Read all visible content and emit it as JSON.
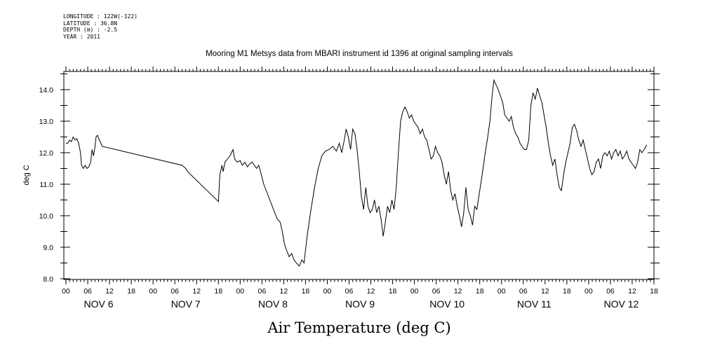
{
  "header": {
    "longitude": "LONGITUDE : 122W(-122)",
    "latitude": "LATITUDE : 36.8N",
    "depth": "DEPTH (m) : -2.5",
    "year": "YEAR : 2011"
  },
  "chart_data": {
    "type": "line",
    "title": "Mooring M1 Metsys data from MBARI instrument id 1396 at original sampling intervals",
    "xlabel": "Air Temperature (deg C)",
    "ylabel": "deg C",
    "ylim": [
      8.0,
      14.5
    ],
    "yticks": [
      "8.0",
      "9.0",
      "10.0",
      "11.0",
      "12.0",
      "13.0",
      "14.0"
    ],
    "xlim_hours": [
      0,
      162
    ],
    "hour_tick_labels": [
      "00",
      "06",
      "12",
      "18",
      "00",
      "06",
      "12",
      "18",
      "00",
      "06",
      "12",
      "18",
      "00",
      "06",
      "12",
      "18",
      "00",
      "06",
      "12",
      "18",
      "00",
      "06",
      "12",
      "18",
      "00",
      "06",
      "12",
      "18"
    ],
    "day_labels": [
      "NOV  6",
      "NOV  7",
      "NOV  8",
      "NOV  9",
      "NOV 10",
      "NOV 11",
      "NOV 12"
    ],
    "grid": false,
    "color": "#000000",
    "series": [
      {
        "points": [
          [
            0,
            12.3
          ],
          [
            0.5,
            12.3
          ],
          [
            1,
            12.4
          ],
          [
            1.5,
            12.35
          ],
          [
            2,
            12.5
          ],
          [
            2.5,
            12.4
          ],
          [
            3,
            12.45
          ],
          [
            3.5,
            12.3
          ],
          [
            4,
            12.0
          ],
          [
            4.3,
            11.6
          ],
          [
            4.8,
            11.5
          ],
          [
            5.3,
            11.6
          ],
          [
            5.8,
            11.5
          ],
          [
            6.3,
            11.55
          ],
          [
            6.8,
            11.7
          ],
          [
            7.2,
            12.1
          ],
          [
            7.6,
            11.9
          ],
          [
            8,
            12.2
          ],
          [
            8.3,
            12.5
          ],
          [
            8.7,
            12.55
          ],
          [
            9.2,
            12.4
          ],
          [
            9.6,
            12.3
          ],
          [
            10,
            12.2
          ],
          [
            32,
            11.6
          ],
          [
            32.5,
            11.55
          ],
          [
            33,
            11.5
          ],
          [
            33.5,
            11.4
          ],
          [
            42,
            10.45
          ],
          [
            42.4,
            11.3
          ],
          [
            43,
            11.6
          ],
          [
            43.3,
            11.4
          ],
          [
            43.8,
            11.7
          ],
          [
            44.5,
            11.8
          ],
          [
            45.2,
            11.9
          ],
          [
            46,
            12.1
          ],
          [
            46.5,
            11.8
          ],
          [
            47.2,
            11.7
          ],
          [
            48,
            11.75
          ],
          [
            48.6,
            11.6
          ],
          [
            49.3,
            11.7
          ],
          [
            50,
            11.55
          ],
          [
            50.7,
            11.65
          ],
          [
            51.3,
            11.7
          ],
          [
            51.9,
            11.6
          ],
          [
            52.5,
            11.5
          ],
          [
            53.1,
            11.6
          ],
          [
            53.6,
            11.4
          ],
          [
            54.5,
            11.0
          ],
          [
            55.5,
            10.7
          ],
          [
            56.5,
            10.4
          ],
          [
            57.5,
            10.1
          ],
          [
            58.2,
            9.9
          ],
          [
            59,
            9.8
          ],
          [
            59.6,
            9.5
          ],
          [
            60.2,
            9.1
          ],
          [
            60.8,
            8.9
          ],
          [
            61.5,
            8.7
          ],
          [
            62.2,
            8.8
          ],
          [
            62.8,
            8.6
          ],
          [
            63.5,
            8.5
          ],
          [
            64.3,
            8.4
          ],
          [
            65,
            8.6
          ],
          [
            65.6,
            8.5
          ],
          [
            66.5,
            9.4
          ],
          [
            67.5,
            10.2
          ],
          [
            68.5,
            10.9
          ],
          [
            69.5,
            11.5
          ],
          [
            70.5,
            11.9
          ],
          [
            71.5,
            12.05
          ],
          [
            72.5,
            12.1
          ],
          [
            73.5,
            12.2
          ],
          [
            74.5,
            12.05
          ],
          [
            75.3,
            12.3
          ],
          [
            76,
            12.0
          ],
          [
            76.6,
            12.35
          ],
          [
            77.2,
            12.75
          ],
          [
            77.8,
            12.5
          ],
          [
            78.4,
            12.1
          ],
          [
            79,
            12.75
          ],
          [
            79.6,
            12.6
          ],
          [
            80.2,
            12.1
          ],
          [
            80.8,
            11.4
          ],
          [
            81.4,
            10.6
          ],
          [
            82,
            10.2
          ],
          [
            82.6,
            10.9
          ],
          [
            83.2,
            10.3
          ],
          [
            83.8,
            10.1
          ],
          [
            84.4,
            10.2
          ],
          [
            85,
            10.5
          ],
          [
            85.6,
            10.1
          ],
          [
            86.2,
            10.3
          ],
          [
            86.8,
            9.9
          ],
          [
            87.4,
            9.35
          ],
          [
            88,
            9.8
          ],
          [
            88.6,
            10.3
          ],
          [
            89.2,
            10.1
          ],
          [
            89.8,
            10.5
          ],
          [
            90.4,
            10.2
          ],
          [
            91,
            10.9
          ],
          [
            91.6,
            12.0
          ],
          [
            92.2,
            13.0
          ],
          [
            92.8,
            13.3
          ],
          [
            93.4,
            13.45
          ],
          [
            94,
            13.3
          ],
          [
            94.6,
            13.1
          ],
          [
            95.2,
            13.2
          ],
          [
            95.8,
            13.0
          ],
          [
            96.4,
            12.9
          ],
          [
            97,
            12.8
          ],
          [
            97.6,
            12.6
          ],
          [
            98.2,
            12.75
          ],
          [
            98.8,
            12.5
          ],
          [
            99.4,
            12.4
          ],
          [
            100,
            12.1
          ],
          [
            100.6,
            11.8
          ],
          [
            101.2,
            11.9
          ],
          [
            101.8,
            12.2
          ],
          [
            102.4,
            12.0
          ],
          [
            103,
            11.9
          ],
          [
            103.6,
            11.7
          ],
          [
            104.2,
            11.3
          ],
          [
            104.8,
            11.0
          ],
          [
            105.4,
            11.4
          ],
          [
            106,
            10.8
          ],
          [
            106.6,
            10.5
          ],
          [
            107.2,
            10.7
          ],
          [
            107.8,
            10.3
          ],
          [
            108.4,
            10.0
          ],
          [
            109,
            9.65
          ],
          [
            109.6,
            10.1
          ],
          [
            110.2,
            10.9
          ],
          [
            110.8,
            10.2
          ],
          [
            111.4,
            10.0
          ],
          [
            112,
            9.7
          ],
          [
            112.6,
            10.3
          ],
          [
            113.2,
            10.2
          ],
          [
            114,
            10.8
          ],
          [
            114.8,
            11.4
          ],
          [
            115.5,
            12.0
          ],
          [
            116.2,
            12.5
          ],
          [
            116.8,
            13.0
          ],
          [
            117.4,
            13.8
          ],
          [
            117.9,
            14.3
          ],
          [
            118.5,
            14.15
          ],
          [
            119.1,
            14.0
          ],
          [
            119.7,
            13.8
          ],
          [
            120.3,
            13.6
          ],
          [
            120.9,
            13.2
          ],
          [
            121.5,
            13.1
          ],
          [
            122.1,
            13.0
          ],
          [
            122.7,
            13.15
          ],
          [
            123.3,
            12.8
          ],
          [
            123.9,
            12.6
          ],
          [
            124.5,
            12.5
          ],
          [
            125.1,
            12.3
          ],
          [
            125.7,
            12.2
          ],
          [
            126.3,
            12.1
          ],
          [
            126.9,
            12.1
          ],
          [
            127.5,
            12.4
          ],
          [
            128.1,
            13.5
          ],
          [
            128.7,
            13.9
          ],
          [
            129.3,
            13.7
          ],
          [
            129.9,
            14.05
          ],
          [
            130.5,
            13.8
          ],
          [
            131.1,
            13.6
          ],
          [
            131.7,
            13.2
          ],
          [
            132.3,
            12.8
          ],
          [
            132.9,
            12.3
          ],
          [
            133.5,
            11.9
          ],
          [
            134.1,
            11.6
          ],
          [
            134.7,
            11.8
          ],
          [
            135.3,
            11.3
          ],
          [
            135.9,
            10.9
          ],
          [
            136.5,
            10.8
          ],
          [
            137.1,
            11.3
          ],
          [
            137.7,
            11.7
          ],
          [
            138.3,
            12.0
          ],
          [
            138.9,
            12.3
          ],
          [
            139.5,
            12.8
          ],
          [
            140.1,
            12.9
          ],
          [
            140.7,
            12.7
          ],
          [
            141.3,
            12.4
          ],
          [
            141.9,
            12.2
          ],
          [
            142.5,
            12.4
          ],
          [
            143.1,
            12.1
          ],
          [
            143.7,
            11.8
          ],
          [
            144.3,
            11.5
          ],
          [
            144.9,
            11.3
          ],
          [
            145.5,
            11.4
          ],
          [
            146.1,
            11.7
          ],
          [
            146.7,
            11.8
          ],
          [
            147.3,
            11.5
          ],
          [
            147.9,
            11.9
          ],
          [
            148.5,
            12.0
          ],
          [
            149.1,
            11.9
          ],
          [
            149.7,
            12.05
          ],
          [
            150.3,
            11.8
          ],
          [
            150.9,
            12.0
          ],
          [
            151.5,
            12.1
          ],
          [
            152.1,
            11.9
          ],
          [
            152.7,
            12.05
          ],
          [
            153.3,
            11.8
          ],
          [
            153.9,
            11.9
          ],
          [
            154.5,
            12.05
          ],
          [
            155.1,
            11.8
          ],
          [
            155.7,
            11.7
          ],
          [
            156.3,
            11.6
          ],
          [
            156.9,
            11.5
          ],
          [
            157.5,
            11.7
          ],
          [
            158.1,
            12.1
          ],
          [
            158.7,
            12.0
          ],
          [
            159.3,
            12.1
          ],
          [
            160,
            12.25
          ]
        ]
      }
    ]
  }
}
